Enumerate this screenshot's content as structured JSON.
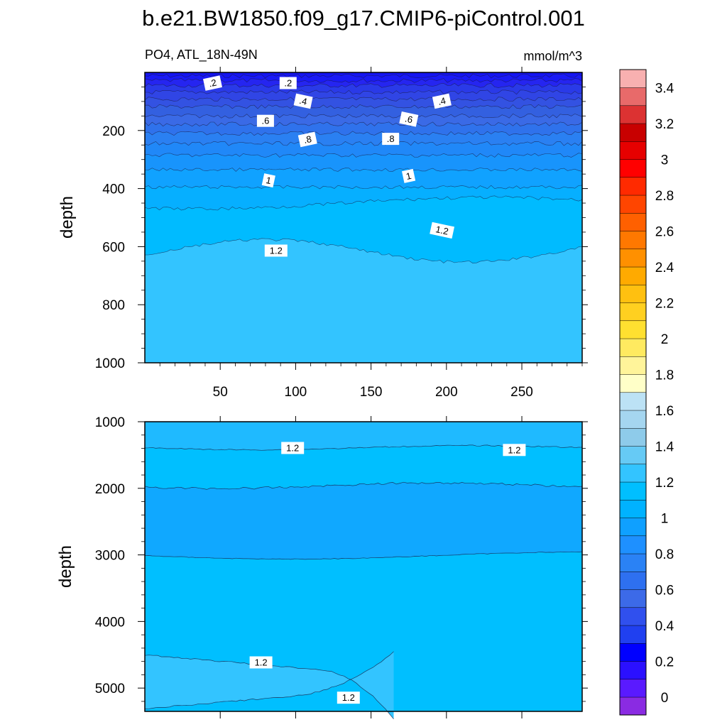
{
  "chart_data": [
    {
      "type": "contour",
      "title": "b.e21.BW1850.f09_g17.CMIP6-piControl.001",
      "left_string": "PO4, ATL_18N-49N",
      "right_string": "mmol/m^3",
      "xlabel": "",
      "ylabel": "depth",
      "xlim": [
        0,
        290
      ],
      "ylim": [
        1000,
        0
      ],
      "xticks": [
        50,
        100,
        150,
        200,
        250
      ],
      "yticks": [
        200,
        400,
        600,
        800,
        1000
      ],
      "contour_labels": [
        {
          "text": ".2",
          "x": 45,
          "depth": 38
        },
        {
          "text": ".2",
          "x": 95,
          "depth": 38
        },
        {
          "text": ".4",
          "x": 105,
          "depth": 100
        },
        {
          "text": ".4",
          "x": 197,
          "depth": 100
        },
        {
          "text": ".6",
          "x": 80,
          "depth": 168
        },
        {
          "text": ".6",
          "x": 175,
          "depth": 162
        },
        {
          "text": ".8",
          "x": 108,
          "depth": 232
        },
        {
          "text": ".8",
          "x": 163,
          "depth": 230
        },
        {
          "text": "1",
          "x": 82,
          "depth": 373
        },
        {
          "text": "1",
          "x": 175,
          "depth": 358
        },
        {
          "text": "1.2",
          "x": 87,
          "depth": 615
        },
        {
          "text": "1.2",
          "x": 197,
          "depth": 545
        }
      ]
    },
    {
      "type": "contour",
      "xlabel": "",
      "ylabel": "depth",
      "xlim": [
        0,
        290
      ],
      "ylim": [
        5350,
        1000
      ],
      "yticks": [
        1000,
        2000,
        3000,
        4000,
        5000
      ],
      "contour_labels": [
        {
          "text": "1.2",
          "x": 98,
          "depth": 1400
        },
        {
          "text": "1.2",
          "x": 245,
          "depth": 1430
        },
        {
          "text": "1.2",
          "x": 77,
          "depth": 4620
        },
        {
          "text": "1.2",
          "x": 135,
          "depth": 5150
        }
      ]
    }
  ],
  "colorbar": {
    "labels": [
      "0",
      "0.2",
      "0.4",
      "0.6",
      "0.8",
      "1",
      "1.2",
      "1.4",
      "1.6",
      "1.8",
      "2",
      "2.2",
      "2.4",
      "2.6",
      "2.8",
      "3",
      "3.2",
      "3.4"
    ],
    "colors_bottom_to_top": [
      "#8A2BE2",
      "#5A1AFF",
      "#2B10FF",
      "#0000FF",
      "#2040F0",
      "#3050EE",
      "#3C6AE8",
      "#2E70F0",
      "#2A82F5",
      "#1E90FF",
      "#0FA0FF",
      "#00B2FF",
      "#00BFFF",
      "#33C4FF",
      "#66CAF5",
      "#8ECBEA",
      "#A5D6F0",
      "#BCE2F5",
      "#FFFFC8",
      "#FFF49A",
      "#FFEA60",
      "#FFE030",
      "#FFD020",
      "#FFC010",
      "#FFAA00",
      "#FF9000",
      "#FF7800",
      "#FF6000",
      "#FF4500",
      "#FF2A00",
      "#FF0000",
      "#E60000",
      "#C80000",
      "#DC3232",
      "#E86A6A",
      "#F8B0B0"
    ]
  }
}
